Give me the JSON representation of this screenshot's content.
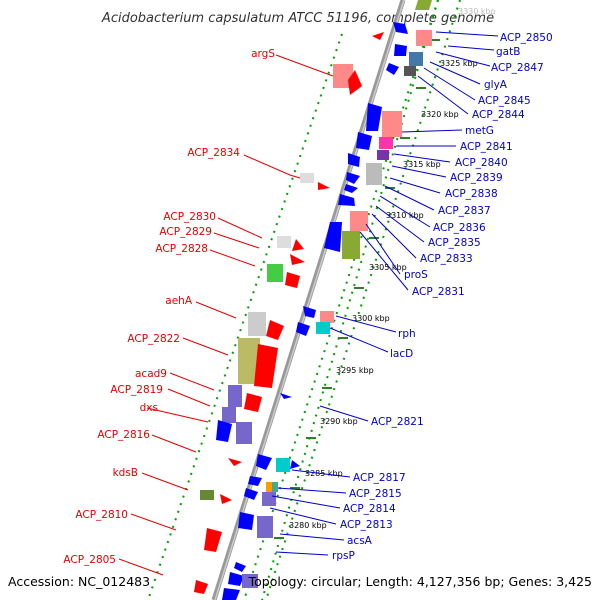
{
  "title": "Acidobacterium capsulatum ATCC 51196, complete genome",
  "footer": {
    "accession": "Accession: NC_012483",
    "topology": "Topology: circular; Length: 4,127,356 bp; Genes: 3,425"
  },
  "colors": {
    "red_gene": "#ff0000",
    "blue_gene": "#0000ff",
    "backbone": "#888888",
    "dotted_ring": "#00a000",
    "red_label": "#e60000",
    "blue_label": "#0000cc"
  },
  "ticks": [
    {
      "label": "3330 kbp",
      "faint": true
    },
    {
      "label": "3325 kbp"
    },
    {
      "label": "3320 kbp"
    },
    {
      "label": "3315 kbp"
    },
    {
      "label": "3310 kbp"
    },
    {
      "label": "3305 kbp"
    },
    {
      "label": "3300 kbp"
    },
    {
      "label": "3295 kbp"
    },
    {
      "label": "3290 kbp"
    },
    {
      "label": "3285 kbp"
    },
    {
      "label": "3280 kbp"
    }
  ],
  "left_labels": [
    "argS",
    "ACP_2834",
    "ACP_2830",
    "ACP_2829",
    "ACP_2828",
    "aehA",
    "ACP_2822",
    "acad9",
    "ACP_2819",
    "dxs",
    "ACP_2816",
    "kdsB",
    "ACP_2810",
    "ACP_2805"
  ],
  "right_labels": [
    "ACP_2850",
    "gatB",
    "ACP_2847",
    "glyA",
    "ACP_2845",
    "ACP_2844",
    "metG",
    "ACP_2841",
    "ACP_2840",
    "ACP_2839",
    "ACP_2838",
    "ACP_2837",
    "ACP_2836",
    "ACP_2835",
    "ACP_2833",
    "proS",
    "ACP_2831",
    "rph",
    "lacD",
    "ACP_2821",
    "ACP_2817",
    "ACP_2815",
    "ACP_2814",
    "ACP_2813",
    "acsA",
    "rpsP"
  ]
}
